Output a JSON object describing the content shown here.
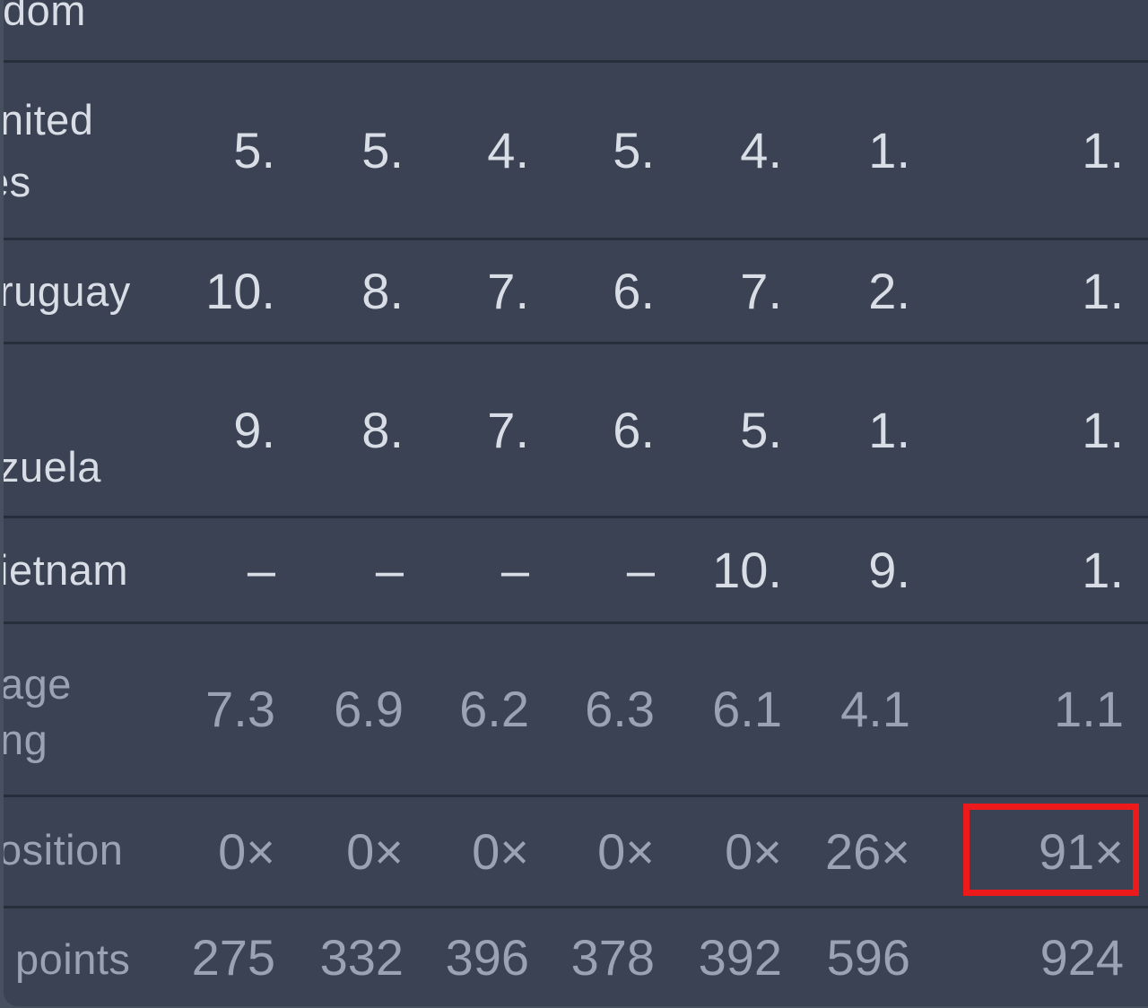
{
  "table": {
    "description_visible_crop": "dark table cropped at left; country rows and summary rows",
    "rows": [
      {
        "name": "united-kingdom-partial",
        "labels": [
          "dom"
        ],
        "cells": []
      },
      {
        "name": "united-states",
        "labels": [
          "nited",
          "es"
        ],
        "cells": [
          "5.",
          "5.",
          "4.",
          "5.",
          "4.",
          "1.",
          "1."
        ]
      },
      {
        "name": "uruguay",
        "labels": [
          "ruguay"
        ],
        "cells": [
          "10.",
          "8.",
          "7.",
          "6.",
          "7.",
          "2.",
          "1."
        ]
      },
      {
        "name": "venezuela",
        "labels": [
          "zuela"
        ],
        "cells": [
          "9.",
          "8.",
          "7.",
          "6.",
          "5.",
          "1.",
          "1."
        ]
      },
      {
        "name": "vietnam",
        "labels": [
          "ietnam"
        ],
        "cells": [
          "–",
          "–",
          "–",
          "–",
          "10.",
          "9.",
          "1."
        ]
      },
      {
        "name": "average-ranking",
        "labels": [
          "age",
          "ng"
        ],
        "cells": [
          "7.3",
          "6.9",
          "6.2",
          "6.3",
          "6.1",
          "4.1",
          "1.1"
        ]
      },
      {
        "name": "position-count",
        "labels": [
          "osition"
        ],
        "cells": [
          "0×",
          "0×",
          "0×",
          "0×",
          "0×",
          "26×",
          "91×"
        ]
      },
      {
        "name": "total-points",
        "labels": [
          "points"
        ],
        "cells": [
          "275",
          "332",
          "396",
          "378",
          "392",
          "596",
          "924"
        ]
      }
    ]
  },
  "annotation": {
    "type": "red-highlight-box",
    "target_value": "91×",
    "color": "#ec1a1a"
  },
  "colors": {
    "page_background": "#46505f",
    "card_background": "#3a4253",
    "separator": "#262d3b",
    "text_bright": "#d9dde6",
    "text_muted": "#9aa2b3"
  }
}
